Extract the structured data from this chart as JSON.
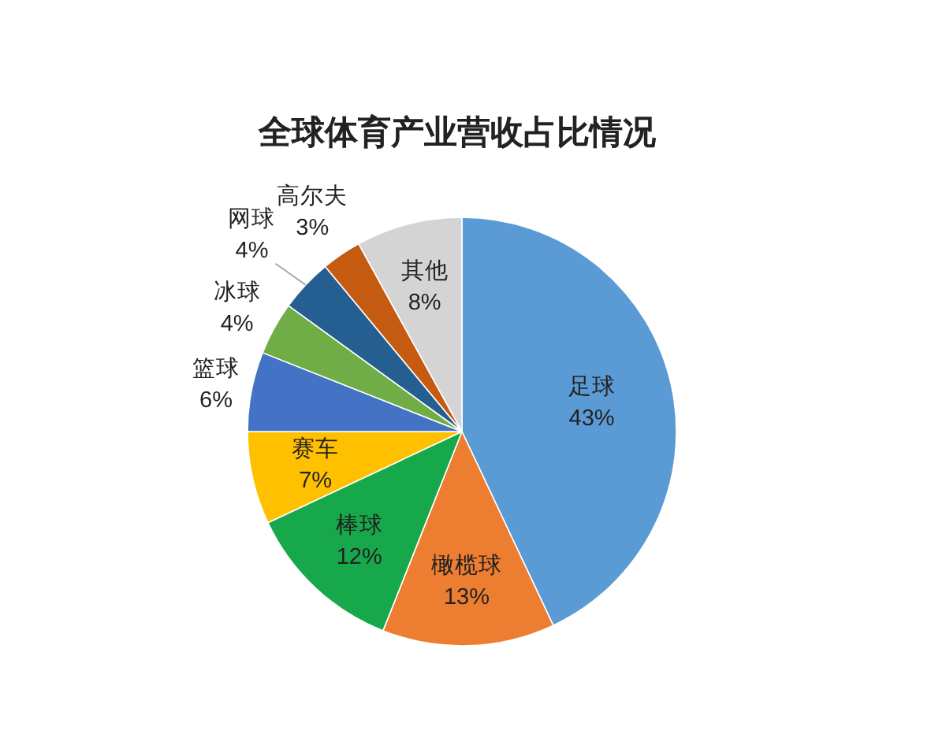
{
  "chart_data": {
    "type": "pie",
    "title": "全球体育产业营收占比情况",
    "categories": [
      "足球",
      "橄榄球",
      "棒球",
      "赛车",
      "篮球",
      "冰球",
      "网球",
      "高尔夫",
      "其他"
    ],
    "values": [
      43,
      13,
      12,
      7,
      6,
      4,
      4,
      3,
      8
    ],
    "value_labels": [
      "43%",
      "13%",
      "12%",
      "7%",
      "6%",
      "4%",
      "4%",
      "3%",
      "8%"
    ],
    "colors": [
      "#5b9bd5",
      "#ed7d31",
      "#17a84b",
      "#ffc000",
      "#4472c4",
      "#70ad47",
      "#255e91",
      "#c55a11",
      "#d4d4d4"
    ]
  }
}
